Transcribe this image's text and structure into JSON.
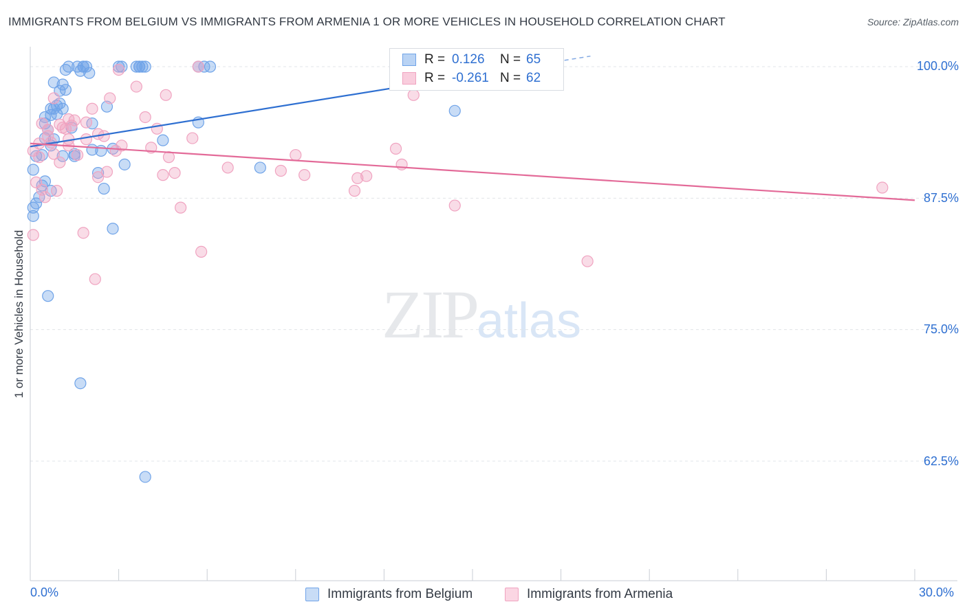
{
  "title": "IMMIGRANTS FROM BELGIUM VS IMMIGRANTS FROM ARMENIA 1 OR MORE VEHICLES IN HOUSEHOLD CORRELATION CHART",
  "source": "Source: ZipAtlas.com",
  "watermark": {
    "zip": "ZIP",
    "atlas": "atlas"
  },
  "legend": {
    "series1": {
      "r_label": "R =",
      "r_value": "0.126",
      "n_label": "N =",
      "n_value": "65"
    },
    "series2": {
      "r_label": "R =",
      "r_value": "-0.261",
      "n_label": "N =",
      "n_value": "62"
    }
  },
  "colors": {
    "belgium": "#6fa3e8",
    "armenia": "#f0a3c0",
    "belgium_line": "#2e6fd1",
    "armenia_line": "#e36a98",
    "tick_text": "#2e6fd1"
  },
  "chart_data": {
    "type": "scatter",
    "title": "IMMIGRANTS FROM BELGIUM VS IMMIGRANTS FROM ARMENIA 1 OR MORE VEHICLES IN HOUSEHOLD CORRELATION CHART",
    "xlabel": "",
    "ylabel": "1 or more Vehicles in Household",
    "xlim": [
      0,
      30
    ],
    "ylim": [
      50,
      101
    ],
    "x_tick_labels": [
      "0.0%",
      "30.0%"
    ],
    "y_ticks": [
      62.5,
      75.0,
      87.5,
      100.0
    ],
    "y_tick_labels": [
      "62.5%",
      "75.0%",
      "87.5%",
      "100.0%"
    ],
    "grid": true,
    "series": [
      {
        "name": "Immigrants from Belgium",
        "r": 0.126,
        "n": 65,
        "trend": {
          "x": [
            0,
            19
          ],
          "y": [
            92.4,
            101.0
          ],
          "dash_from_x": 12.8
        },
        "points": [
          [
            0.1,
            90.2
          ],
          [
            0.1,
            85.8
          ],
          [
            0.1,
            86.6
          ],
          [
            0.2,
            87.0
          ],
          [
            0.2,
            91.5
          ],
          [
            0.3,
            87.6
          ],
          [
            0.4,
            88.7
          ],
          [
            0.4,
            91.6
          ],
          [
            0.5,
            93.2
          ],
          [
            0.5,
            89.1
          ],
          [
            0.5,
            94.6
          ],
          [
            0.5,
            95.2
          ],
          [
            0.6,
            94.0
          ],
          [
            0.6,
            78.2
          ],
          [
            0.7,
            92.5
          ],
          [
            0.7,
            96.0
          ],
          [
            0.7,
            95.4
          ],
          [
            0.7,
            88.2
          ],
          [
            0.8,
            98.5
          ],
          [
            0.8,
            93.1
          ],
          [
            0.8,
            96.0
          ],
          [
            0.9,
            95.5
          ],
          [
            0.9,
            96.3
          ],
          [
            1.0,
            96.5
          ],
          [
            1.0,
            97.7
          ],
          [
            1.1,
            98.3
          ],
          [
            1.1,
            96.0
          ],
          [
            1.1,
            91.5
          ],
          [
            1.2,
            99.7
          ],
          [
            1.2,
            97.8
          ],
          [
            1.3,
            100.0
          ],
          [
            1.4,
            94.2
          ],
          [
            1.5,
            91.5
          ],
          [
            1.5,
            91.7
          ],
          [
            1.6,
            100.0
          ],
          [
            1.7,
            99.6
          ],
          [
            1.8,
            100.0
          ],
          [
            1.8,
            100.0
          ],
          [
            1.9,
            100.0
          ],
          [
            2.0,
            99.4
          ],
          [
            2.1,
            92.1
          ],
          [
            2.1,
            94.6
          ],
          [
            2.3,
            89.9
          ],
          [
            2.4,
            92.0
          ],
          [
            2.5,
            88.4
          ],
          [
            2.6,
            96.2
          ],
          [
            2.8,
            92.2
          ],
          [
            2.8,
            84.6
          ],
          [
            3.0,
            100.0
          ],
          [
            3.1,
            100.0
          ],
          [
            3.2,
            90.7
          ],
          [
            3.6,
            100.0
          ],
          [
            3.7,
            100.0
          ],
          [
            3.7,
            100.0
          ],
          [
            3.8,
            100.0
          ],
          [
            3.9,
            100.0
          ],
          [
            3.9,
            61.0
          ],
          [
            4.5,
            93.0
          ],
          [
            5.7,
            94.7
          ],
          [
            5.7,
            100.0
          ],
          [
            5.9,
            100.0
          ],
          [
            6.1,
            100.0
          ],
          [
            7.8,
            90.4
          ],
          [
            14.4,
            95.8
          ],
          [
            1.7,
            69.9
          ]
        ]
      },
      {
        "name": "Immigrants from Armenia",
        "r": -0.261,
        "n": 62,
        "trend": {
          "x": [
            0,
            30
          ],
          "y": [
            92.7,
            87.3
          ]
        },
        "points": [
          [
            0.1,
            84.0
          ],
          [
            0.1,
            92.0
          ],
          [
            0.2,
            89.0
          ],
          [
            0.3,
            91.4
          ],
          [
            0.3,
            92.7
          ],
          [
            0.4,
            94.6
          ],
          [
            0.4,
            88.3
          ],
          [
            0.5,
            87.6
          ],
          [
            0.6,
            93.4
          ],
          [
            0.6,
            94.0
          ],
          [
            0.7,
            92.8
          ],
          [
            0.8,
            91.7
          ],
          [
            0.8,
            97.0
          ],
          [
            0.9,
            88.2
          ],
          [
            1.0,
            94.5
          ],
          [
            1.0,
            90.9
          ],
          [
            1.1,
            94.2
          ],
          [
            1.2,
            94.1
          ],
          [
            1.3,
            95.0
          ],
          [
            1.3,
            92.5
          ],
          [
            1.3,
            93.1
          ],
          [
            1.4,
            94.4
          ],
          [
            1.5,
            94.9
          ],
          [
            1.6,
            91.6
          ],
          [
            1.8,
            84.2
          ],
          [
            1.9,
            94.7
          ],
          [
            1.9,
            93.1
          ],
          [
            2.1,
            96.0
          ],
          [
            2.2,
            79.8
          ],
          [
            2.3,
            93.6
          ],
          [
            2.3,
            89.5
          ],
          [
            2.5,
            93.4
          ],
          [
            2.6,
            90.0
          ],
          [
            2.7,
            97.0
          ],
          [
            2.9,
            92.0
          ],
          [
            3.0,
            99.7
          ],
          [
            3.1,
            92.5
          ],
          [
            3.6,
            98.1
          ],
          [
            3.9,
            95.2
          ],
          [
            4.1,
            92.3
          ],
          [
            4.3,
            94.1
          ],
          [
            4.5,
            89.7
          ],
          [
            4.6,
            97.3
          ],
          [
            4.7,
            91.4
          ],
          [
            4.9,
            89.9
          ],
          [
            5.1,
            86.6
          ],
          [
            5.5,
            93.2
          ],
          [
            5.7,
            100.0
          ],
          [
            5.8,
            82.4
          ],
          [
            6.7,
            90.4
          ],
          [
            8.5,
            90.1
          ],
          [
            9.0,
            91.6
          ],
          [
            9.3,
            89.7
          ],
          [
            11.0,
            88.2
          ],
          [
            11.1,
            89.4
          ],
          [
            11.4,
            89.6
          ],
          [
            12.4,
            92.2
          ],
          [
            12.6,
            90.7
          ],
          [
            13.0,
            97.3
          ],
          [
            14.4,
            86.8
          ],
          [
            18.9,
            81.5
          ],
          [
            28.9,
            88.5
          ]
        ]
      }
    ]
  }
}
